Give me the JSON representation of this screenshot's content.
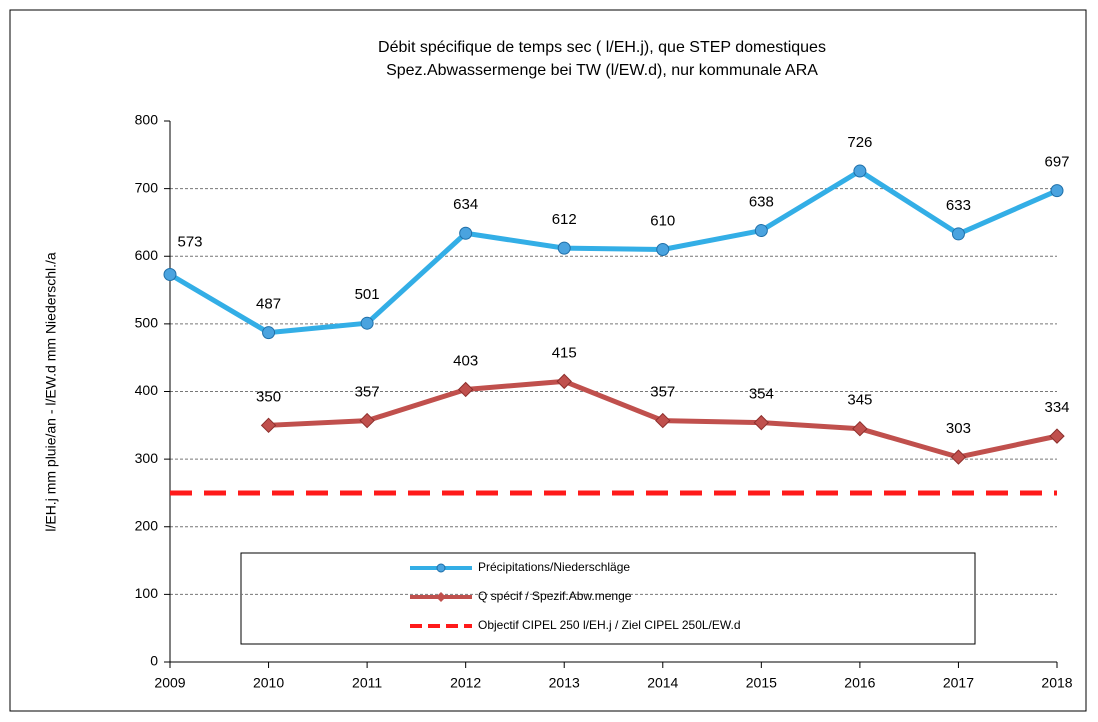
{
  "chart_data": {
    "type": "line",
    "title": "Débit spécifique de temps sec ( l/EH.j), que STEP domestiques",
    "subtitle": "Spez.Abwassermenge bei TW (l/EW.d), nur kommunale  ARA",
    "y_label": "l/EH.j    mm pluie/an   -  l/EW.d     mm Niederschl./a",
    "categories": [
      "2009",
      "2010",
      "2011",
      "2012",
      "2013",
      "2014",
      "2015",
      "2016",
      "2017",
      "2018"
    ],
    "series": [
      {
        "name": "Précipitations/Niederschläge",
        "color": "#33aee6",
        "values": [
          573,
          487,
          501,
          634,
          612,
          610,
          638,
          726,
          633,
          697
        ]
      },
      {
        "name": "Q spécif / Spezif.Abw.menge",
        "color": "#c0504d",
        "values": [
          null,
          350,
          357,
          403,
          415,
          357,
          354,
          345,
          303,
          334
        ]
      },
      {
        "name": "Objectif CIPEL 250 l/EH.j / Ziel CIPEL 250L/EW.d",
        "color": "#ff1a1a",
        "dashed": true,
        "values": [
          250,
          250,
          250,
          250,
          250,
          250,
          250,
          250,
          250,
          250
        ]
      }
    ],
    "ylim": [
      0,
      800
    ],
    "yticks": [
      0,
      100,
      200,
      300,
      400,
      500,
      600,
      700,
      800
    ],
    "grid": true
  }
}
